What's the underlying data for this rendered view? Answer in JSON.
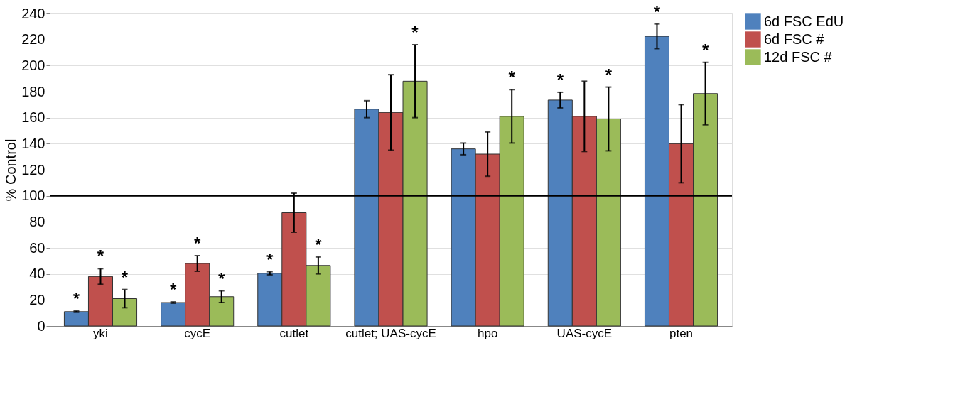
{
  "chart_data": {
    "type": "bar",
    "ylabel": "% Control",
    "categories": [
      "yki",
      "cycE",
      "cutlet",
      "cutlet; UAS-cycE",
      "hpo",
      "UAS-cycE",
      "pten"
    ],
    "series": [
      {
        "name": "6d FSC EdU",
        "color": "#4f81bd",
        "values": [
          11,
          18,
          40.5,
          166.5,
          136,
          173.5,
          222.5
        ],
        "errors": [
          0.5,
          0.5,
          1.2,
          6.5,
          4.5,
          6,
          9.5
        ],
        "value_labels": [
          "*",
          "*",
          "*",
          null,
          null,
          "*",
          "*"
        ]
      },
      {
        "name": "6d FSC #",
        "color": "#c0504d",
        "values": [
          38,
          48,
          87,
          164,
          132,
          161,
          140
        ],
        "errors": [
          6,
          6,
          15,
          29,
          17,
          27,
          30
        ],
        "value_labels": [
          "*",
          "*",
          null,
          null,
          null,
          null,
          null
        ]
      },
      {
        "name": "12d FSC #",
        "color": "#9bbb59",
        "values": [
          21,
          22.5,
          46.5,
          188,
          161,
          159,
          178.5
        ],
        "errors": [
          7,
          4.5,
          6.5,
          28,
          20.5,
          24.5,
          24
        ],
        "value_labels": [
          "*",
          "*",
          "*",
          "*",
          "*",
          "*",
          "*"
        ]
      }
    ],
    "ylim": [
      0,
      240
    ],
    "yticks": [
      0,
      20,
      40,
      60,
      80,
      100,
      120,
      140,
      160,
      180,
      200,
      220,
      240
    ],
    "ref_lines": [
      {
        "axis": "y",
        "value": 100,
        "color": "#000000"
      }
    ],
    "grid": "y",
    "legend": "right"
  }
}
